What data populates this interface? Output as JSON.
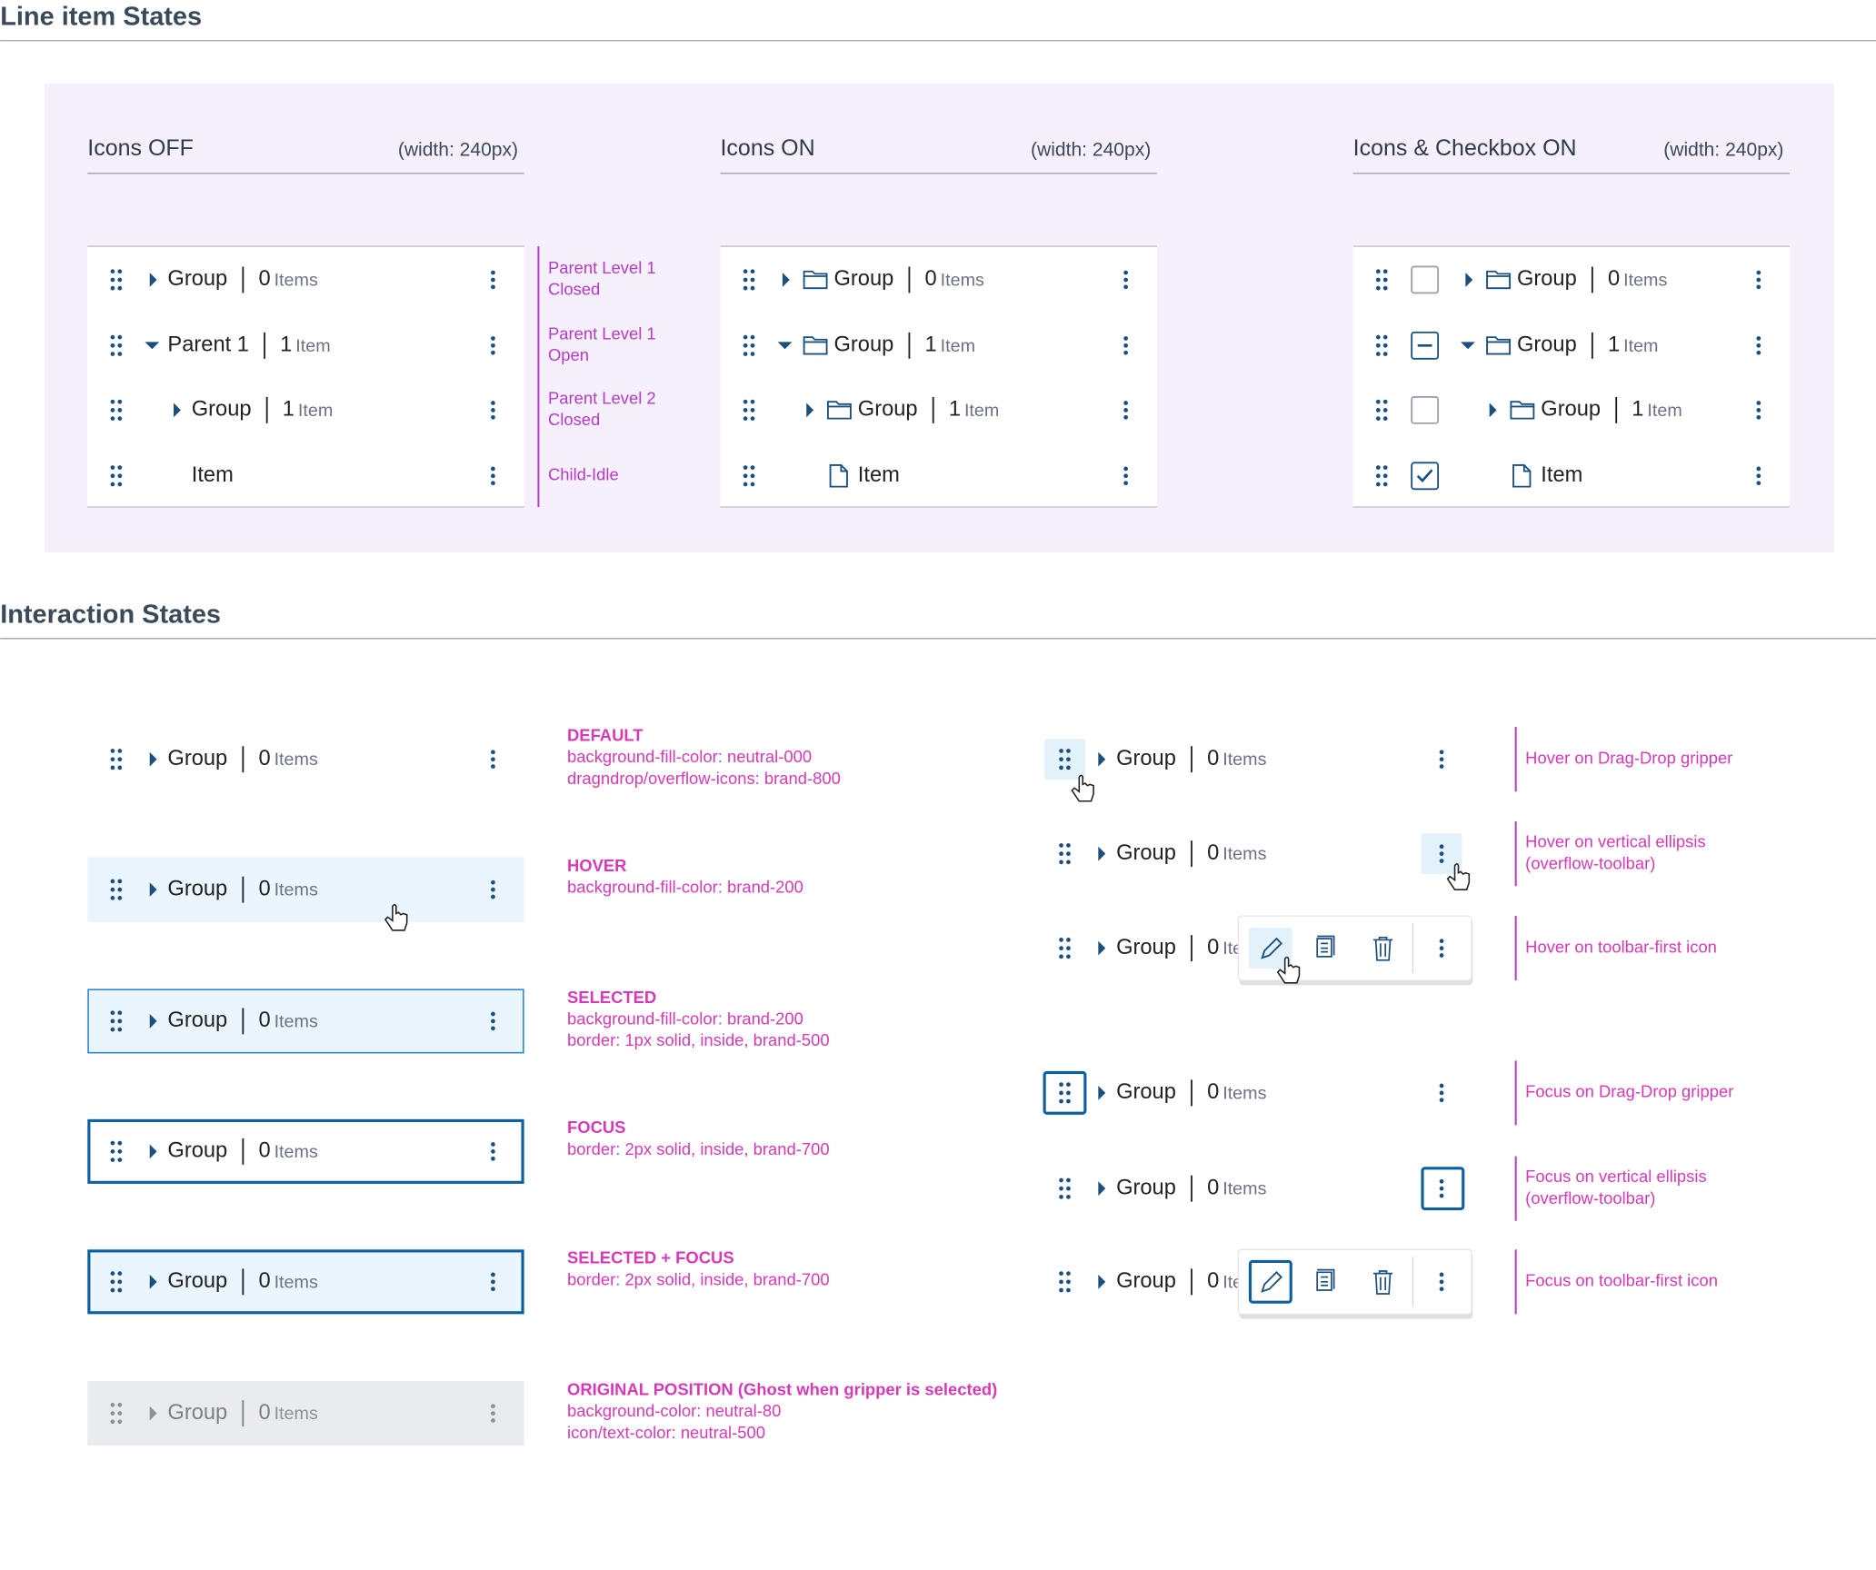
{
  "line_item_states": {
    "title": "Line item States",
    "columns": [
      {
        "title": "Icons OFF",
        "width_note": "(width: 240px)",
        "rows": [
          {
            "label": "Group",
            "count": 0,
            "unit": "Items"
          },
          {
            "label": "Parent 1",
            "count": 1,
            "unit": "Item"
          },
          {
            "label": "Group",
            "count": 1,
            "unit": "Item"
          },
          {
            "label": "Item"
          }
        ]
      },
      {
        "title": "Icons ON",
        "width_note": "(width: 240px)",
        "rows": [
          {
            "label": "Group",
            "count": 0,
            "unit": "Items"
          },
          {
            "label": "Group",
            "count": 1,
            "unit": "Item"
          },
          {
            "label": "Group",
            "count": 1,
            "unit": "Item"
          },
          {
            "label": "Item"
          }
        ]
      },
      {
        "title": "Icons & Checkbox ON",
        "width_note": "(width: 240px)",
        "rows": [
          {
            "label": "Group",
            "count": 0,
            "unit": "Items"
          },
          {
            "label": "Group",
            "count": 1,
            "unit": "Item"
          },
          {
            "label": "Group",
            "count": 1,
            "unit": "Item"
          },
          {
            "label": "Item"
          }
        ]
      }
    ],
    "row_notes": [
      [
        "Parent Level 1",
        "Closed"
      ],
      [
        "Parent Level 1",
        "Open"
      ],
      [
        "Parent Level 2",
        "Closed"
      ],
      [
        "Child-Idle"
      ]
    ]
  },
  "interaction_states": {
    "title": "Interaction States",
    "row_states": [
      {
        "name": "DEFAULT",
        "notes": [
          "background-fill-color: neutral-000",
          "dragndrop/overflow-icons: brand-800"
        ],
        "row": {
          "label": "Group",
          "count": 0,
          "unit": "Items"
        }
      },
      {
        "name": "HOVER",
        "notes": [
          "background-fill-color: brand-200"
        ],
        "row": {
          "label": "Group",
          "count": 0,
          "unit": "Items"
        }
      },
      {
        "name": "SELECTED",
        "notes": [
          "background-fill-color: brand-200",
          "border: 1px solid, inside, brand-500"
        ],
        "row": {
          "label": "Group",
          "count": 0,
          "unit": "Items"
        }
      },
      {
        "name": "FOCUS",
        "notes": [
          "border: 2px solid, inside, brand-700"
        ],
        "row": {
          "label": "Group",
          "count": 0,
          "unit": "Items"
        }
      },
      {
        "name": "SELECTED + FOCUS",
        "notes": [
          "border: 2px solid, inside, brand-700"
        ],
        "row": {
          "label": "Group",
          "count": 0,
          "unit": "Items"
        }
      },
      {
        "name": "ORIGINAL POSITION (Ghost when gripper is selected)",
        "notes": [
          "background-color: neutral-80",
          "icon/text-color: neutral-500"
        ],
        "row": {
          "label": "Group",
          "count": 0,
          "unit": "Items"
        }
      }
    ],
    "control_states": [
      {
        "notes": [
          "Hover on Drag-Drop gripper"
        ],
        "row": {
          "label": "Group",
          "count": 0,
          "unit": "Items"
        }
      },
      {
        "notes": [
          "Hover on vertical ellipsis",
          "(overflow-toolbar)"
        ],
        "row": {
          "label": "Group",
          "count": 0,
          "unit": "Items"
        }
      },
      {
        "notes": [
          "Hover on toolbar-first icon"
        ],
        "row": {
          "label": "Group",
          "count": 0,
          "unit": "Items"
        }
      },
      {
        "notes": [
          "Focus on Drag-Drop gripper"
        ],
        "row": {
          "label": "Group",
          "count": 0,
          "unit": "Items"
        }
      },
      {
        "notes": [
          "Focus on vertical ellipsis",
          "(overflow-toolbar)"
        ],
        "row": {
          "label": "Group",
          "count": 0,
          "unit": "Items"
        }
      },
      {
        "notes": [
          "Focus on toolbar-first icon"
        ],
        "row": {
          "label": "Group",
          "count": 0,
          "unit": "Items"
        }
      }
    ]
  }
}
